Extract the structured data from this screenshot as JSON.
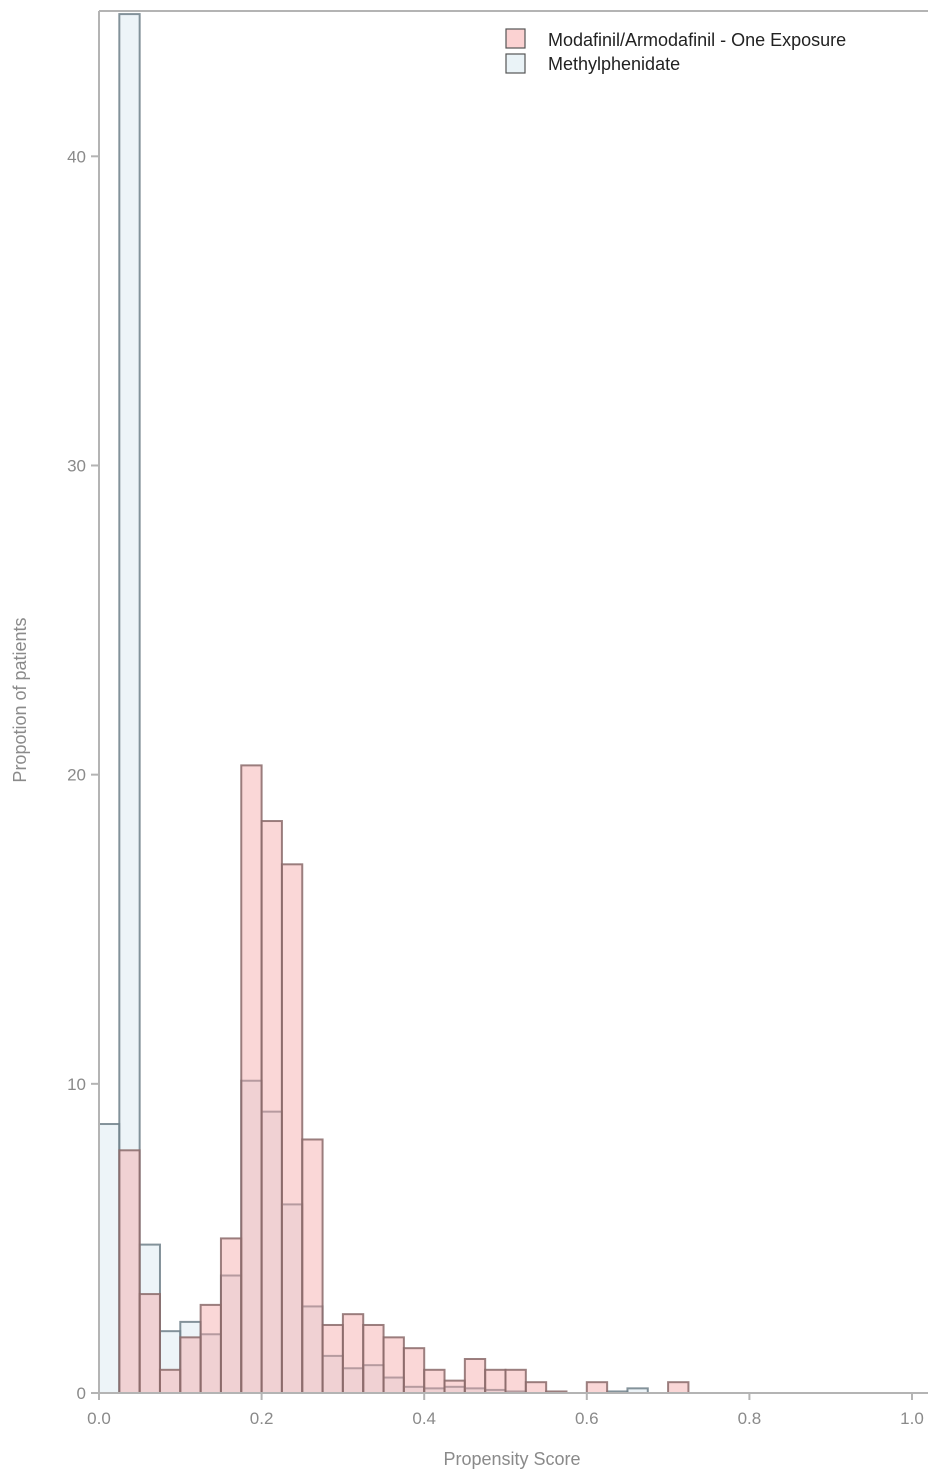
{
  "chart_data": {
    "type": "bar",
    "title": "",
    "xlabel": "Propensity Score",
    "ylabel": "Propotion of patients",
    "xlim": [
      0.0,
      1.0
    ],
    "ylim": [
      0,
      44.7
    ],
    "bin_width": 0.025,
    "x_ticks": [
      "0.0",
      "0.2",
      "0.4",
      "0.6",
      "0.8",
      "1.0"
    ],
    "y_ticks": [
      "0",
      "10",
      "20",
      "30",
      "40"
    ],
    "grid": false,
    "legend_position": "top-right",
    "bin_starts": [
      0.0,
      0.025,
      0.05,
      0.075,
      0.1,
      0.125,
      0.15,
      0.175,
      0.2,
      0.225,
      0.25,
      0.275,
      0.3,
      0.325,
      0.35,
      0.375,
      0.4,
      0.425,
      0.45,
      0.475,
      0.5,
      0.525,
      0.55,
      0.575,
      0.6,
      0.625,
      0.65,
      0.675,
      0.7
    ],
    "series": [
      {
        "name": "Modafinil/Armodafinil - One Exposure",
        "color": "#f4a6a6",
        "values": [
          0,
          7.85,
          3.2,
          0.75,
          1.8,
          2.85,
          5.0,
          20.3,
          18.5,
          17.1,
          8.2,
          2.2,
          2.55,
          2.2,
          1.8,
          1.45,
          0.75,
          0.4,
          1.1,
          0.75,
          0.75,
          0.35,
          0.05,
          0,
          0.35,
          0,
          0,
          0,
          0.35
        ]
      },
      {
        "name": "Methylphenidate",
        "color": "#d6e7f0",
        "values": [
          8.7,
          44.6,
          4.8,
          2.0,
          2.3,
          1.9,
          3.8,
          10.1,
          9.1,
          6.1,
          2.8,
          1.2,
          0.8,
          0.9,
          0.5,
          0.2,
          0.15,
          0.2,
          0.15,
          0.1,
          0.05,
          0,
          0,
          0,
          0,
          0.05,
          0.15,
          0,
          0
        ]
      }
    ]
  }
}
